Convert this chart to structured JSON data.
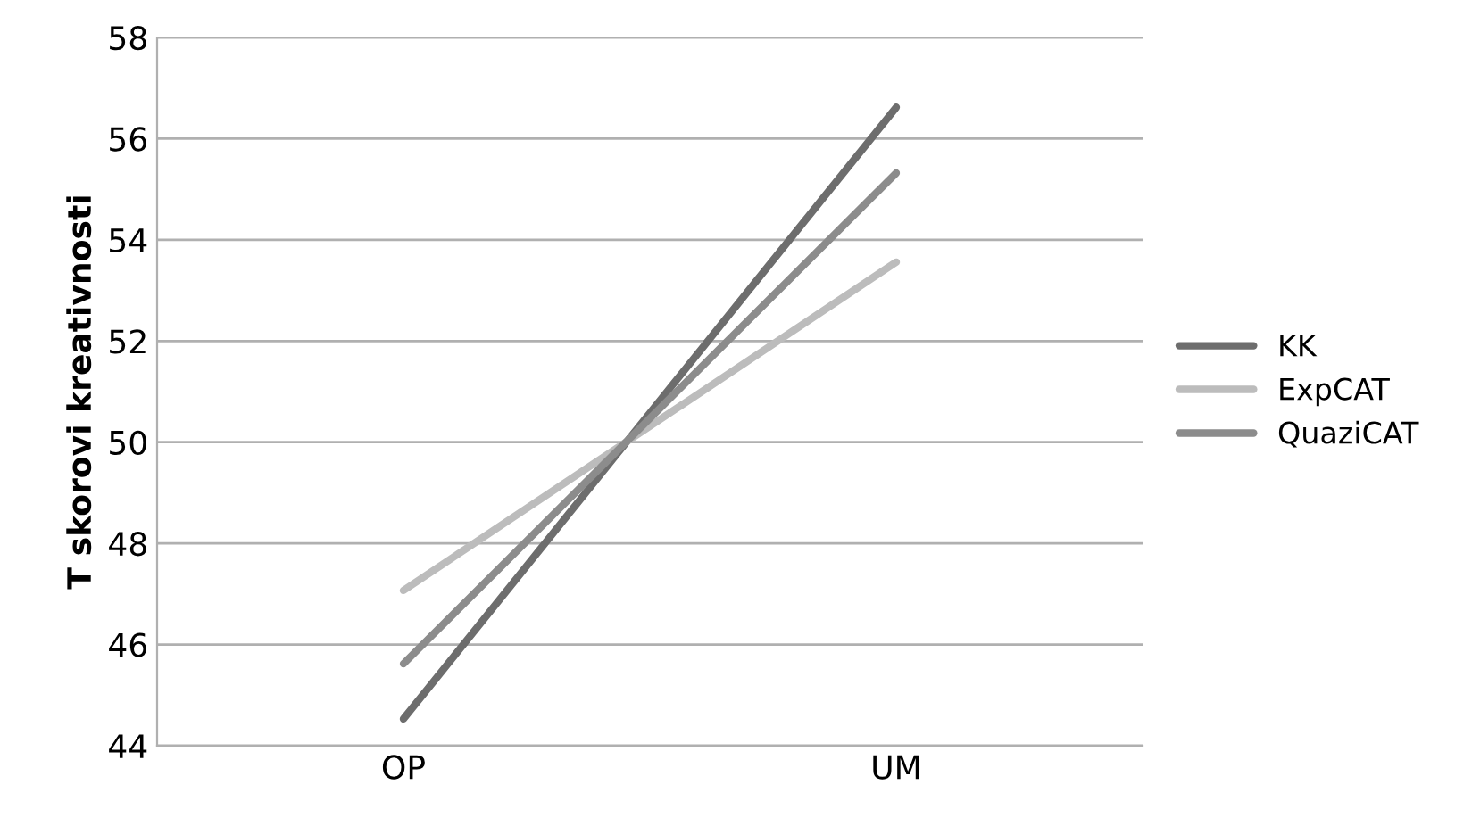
{
  "chart_data": {
    "type": "line",
    "ylabel": "T skorovi kreativnosti",
    "categories": [
      "OP",
      "UM"
    ],
    "series": [
      {
        "name": "KK",
        "color": "#6d6d6d",
        "values": [
          44.53,
          56.62
        ]
      },
      {
        "name": "ExpCAT",
        "color": "#bcbcbc",
        "values": [
          47.07,
          53.56
        ]
      },
      {
        "name": "QuaziCAT",
        "color": "#8c8c8c",
        "values": [
          45.62,
          55.32
        ]
      }
    ],
    "ylim": [
      44,
      58
    ],
    "yticks": [
      44,
      46,
      48,
      50,
      52,
      54,
      56,
      58
    ],
    "grid": "y",
    "legend": "right",
    "marker": "none",
    "line_style": "solid"
  }
}
